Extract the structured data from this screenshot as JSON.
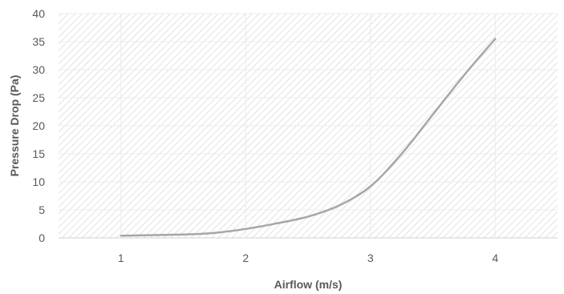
{
  "chart_data": {
    "type": "line",
    "title": "",
    "xlabel": "Airflow (m/s)",
    "ylabel": "Pressure Drop (Pa)",
    "xlim": [
      0.5,
      4.5
    ],
    "ylim": [
      0,
      40
    ],
    "x_ticks": [
      "1",
      "2",
      "3",
      "4"
    ],
    "y_ticks": [
      "0",
      "5",
      "10",
      "15",
      "20",
      "25",
      "30",
      "35",
      "40"
    ],
    "grid": true,
    "legend": "none",
    "line_color": "#a6a6a6",
    "series": [
      {
        "name": "",
        "x": [
          1,
          1.5,
          1.75,
          2,
          2.25,
          2.5,
          2.75,
          3,
          3.25,
          3.5,
          3.75,
          4
        ],
        "values": [
          0.4,
          0.6,
          0.9,
          1.6,
          2.6,
          3.8,
          5.8,
          9.2,
          15.0,
          22.0,
          29.0,
          35.5
        ]
      }
    ]
  }
}
